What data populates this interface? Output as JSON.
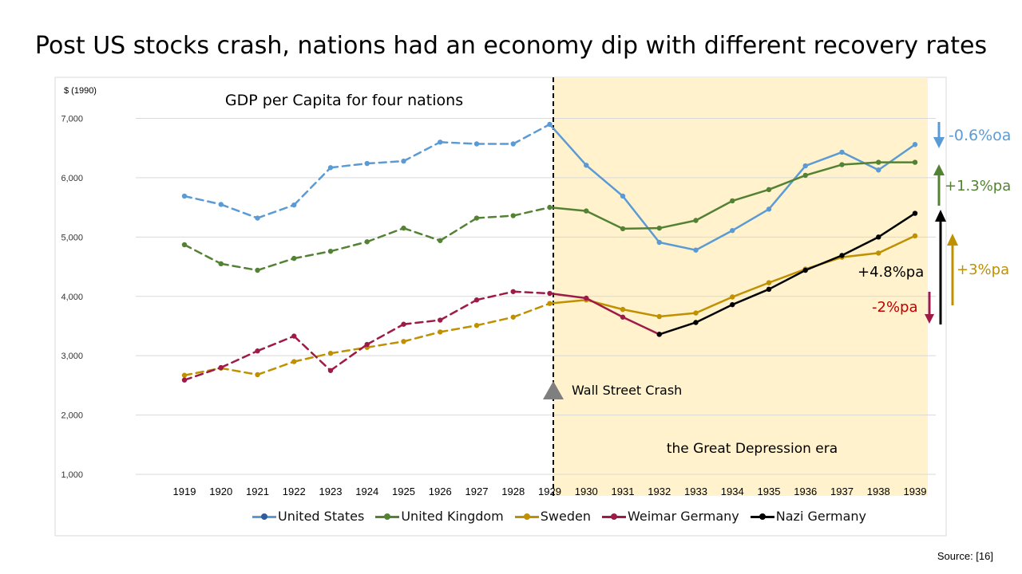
{
  "slide": {
    "title": "Post US stocks crash, nations had an economy dip with different recovery rates",
    "source": "Source: [16]"
  },
  "chart_data": {
    "type": "line",
    "title": "GDP per Capita for four nations",
    "ylabel": "$ (1990)",
    "xlabel": "",
    "ylim": [
      1000,
      7000
    ],
    "yticks": [
      1000,
      2000,
      3000,
      4000,
      5000,
      6000,
      7000
    ],
    "ytick_labels": [
      "1,000",
      "2,000",
      "3,000",
      "4,000",
      "5,000",
      "6,000",
      "7,000"
    ],
    "categories": [
      "1919",
      "1920",
      "1921",
      "1922",
      "1923",
      "1924",
      "1925",
      "1926",
      "1927",
      "1928",
      "1929",
      "1930",
      "1931",
      "1932",
      "1933",
      "1934",
      "1935",
      "1936",
      "1937",
      "1938",
      "1939"
    ],
    "grid": true,
    "legend_position": "bottom",
    "series": [
      {
        "name": "United States",
        "color": "#5b9bd5",
        "values": [
          5690,
          5550,
          5320,
          5540,
          6170,
          6240,
          6280,
          6600,
          6570,
          6570,
          6900,
          6210,
          5690,
          4910,
          4780,
          5110,
          5470,
          6200,
          6430,
          6130,
          6560
        ]
      },
      {
        "name": "United Kingdom",
        "color": "#548235",
        "values": [
          4870,
          4550,
          4440,
          4640,
          4760,
          4920,
          5150,
          4940,
          5320,
          5360,
          5500,
          5440,
          5140,
          5150,
          5280,
          5610,
          5800,
          6040,
          6220,
          6260,
          6260
        ]
      },
      {
        "name": "Sweden",
        "color": "#bf9000",
        "values": [
          2670,
          2790,
          2680,
          2900,
          3040,
          3140,
          3240,
          3400,
          3510,
          3650,
          3880,
          3940,
          3780,
          3660,
          3720,
          3990,
          4230,
          4460,
          4660,
          4730,
          5020
        ]
      },
      {
        "name": "Weimar Germany",
        "color": "#9e1b47",
        "values": [
          2590,
          2800,
          3080,
          3330,
          2750,
          3190,
          3530,
          3600,
          3940,
          4080,
          4050,
          3970,
          3650,
          3360,
          null,
          null,
          null,
          null,
          null,
          null,
          null
        ]
      },
      {
        "name": "Nazi Germany",
        "color": "#000000",
        "values": [
          null,
          null,
          null,
          null,
          null,
          null,
          null,
          null,
          null,
          null,
          null,
          null,
          null,
          3360,
          3560,
          3860,
          4120,
          4440,
          4690,
          5000,
          5400
        ]
      }
    ],
    "annotations": {
      "crash_label": "Wall Street Crash",
      "era_label": "the Great Depression era",
      "us_rate": "-0.6%oa",
      "uk_rate": "+1.3%pa",
      "nazi_rate": "+4.8%pa",
      "sweden_rate": "+3%pa",
      "weimar_rate": "-2%pa"
    }
  }
}
